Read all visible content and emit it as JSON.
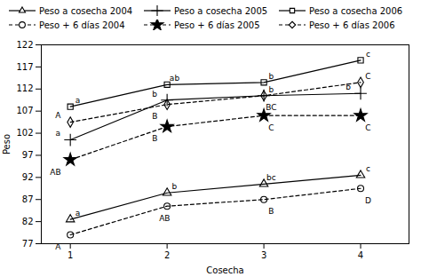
{
  "chart_data": {
    "type": "line",
    "x": [
      1,
      2,
      3,
      4
    ],
    "series": [
      {
        "name": "Peso a cosecha 2004",
        "color": "#000000",
        "marker": "triangle",
        "line_style": "solid",
        "values": [
          82.5,
          88.5,
          90.5,
          92.5
        ]
      },
      {
        "name": "Peso a cosecha 2005",
        "color": "#000000",
        "marker": "plus",
        "line_style": "solid",
        "values": [
          100.5,
          109.5,
          110.5,
          111.0
        ]
      },
      {
        "name": "Peso a cosecha 2006",
        "color": "#000000",
        "marker": "square",
        "line_style": "solid",
        "values": [
          108.0,
          113.0,
          113.5,
          118.5
        ]
      },
      {
        "name": "Peso + 6 días 2004",
        "color": "#000000",
        "marker": "circle",
        "line_style": "dashed",
        "values": [
          79.0,
          85.5,
          87.0,
          89.5
        ]
      },
      {
        "name": "Peso + 6 días 2005",
        "color": "#000000",
        "marker": "star",
        "line_style": "dashed",
        "values": [
          96.0,
          103.5,
          106.0,
          106.0
        ]
      },
      {
        "name": "Peso + 6 días 2006",
        "color": "#000000",
        "marker": "diamond",
        "line_style": "dashed",
        "values": [
          104.5,
          108.5,
          110.5,
          113.5
        ]
      }
    ],
    "annotations": [
      {
        "x": 1,
        "y": 82.5,
        "text": "a"
      },
      {
        "x": 2,
        "y": 88.5,
        "text": "b"
      },
      {
        "x": 3,
        "y": 90.5,
        "text": "bc"
      },
      {
        "x": 4,
        "y": 92.5,
        "text": "c"
      },
      {
        "x": 1,
        "y": 100.5,
        "text": "a"
      },
      {
        "x": 2,
        "y": 109.5,
        "text": "b"
      },
      {
        "x": 3,
        "y": 110.5,
        "text": "b"
      },
      {
        "x": 4,
        "y": 111.0,
        "text": "b"
      },
      {
        "x": 1,
        "y": 108.0,
        "text": "a"
      },
      {
        "x": 2,
        "y": 113.0,
        "text": "ab"
      },
      {
        "x": 3,
        "y": 113.5,
        "text": "b"
      },
      {
        "x": 4,
        "y": 118.5,
        "text": "c"
      },
      {
        "x": 1,
        "y": 79.0,
        "text": "A"
      },
      {
        "x": 2,
        "y": 85.5,
        "text": "AB"
      },
      {
        "x": 3,
        "y": 87.0,
        "text": "B"
      },
      {
        "x": 4,
        "y": 89.5,
        "text": "D"
      },
      {
        "x": 1,
        "y": 96.0,
        "text": "AB"
      },
      {
        "x": 2,
        "y": 103.5,
        "text": "B"
      },
      {
        "x": 3,
        "y": 106.0,
        "text": "C"
      },
      {
        "x": 4,
        "y": 106.0,
        "text": "C"
      },
      {
        "x": 1,
        "y": 104.5,
        "text": "A"
      },
      {
        "x": 2,
        "y": 108.5,
        "text": "B"
      },
      {
        "x": 3,
        "y": 110.5,
        "text": "BC"
      },
      {
        "x": 4,
        "y": 113.5,
        "text": "C"
      }
    ],
    "xlabel": "Cosecha",
    "ylabel": "Peso",
    "xlim": [
      0.7,
      4.5
    ],
    "ylim": [
      77,
      122
    ],
    "xticks": [
      1,
      2,
      3,
      4
    ],
    "yticks": [
      77,
      82,
      87,
      92,
      97,
      102,
      107,
      112,
      117,
      122
    ],
    "grid": false,
    "legend": "top"
  }
}
